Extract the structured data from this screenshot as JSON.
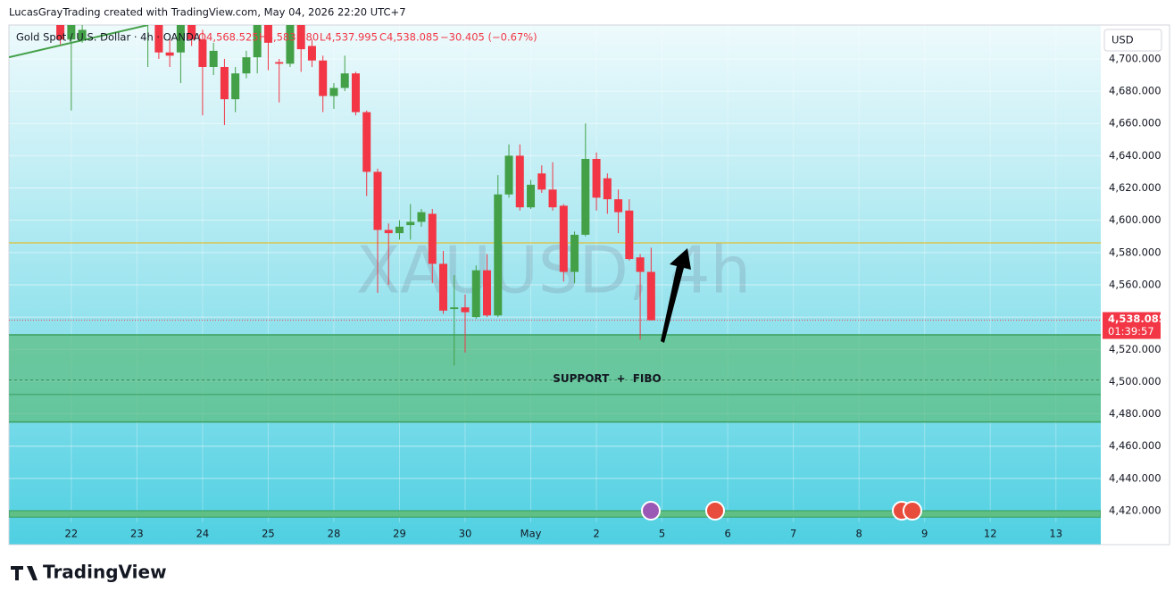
{
  "header": "LucasGrayTrading created with TradingView.com, May 04, 2026 22:20 UTC+7",
  "footer": "TradingView",
  "chart_data": {
    "type": "candlestick",
    "legend": "Gold Spot / U.S. Dollar · 4h · OANDA",
    "ohlc_text": [
      "O4,568.525",
      "H4,583.180",
      "L4,537.995",
      "C4,538.085",
      "−30.405 (−0.67%)"
    ],
    "watermark": "XAUUSD, 4h",
    "currency": "USD",
    "annotation": "SUPPORT + FIBO",
    "countdown": "01:39:57",
    "last_price": {
      "value": 4538.085,
      "label": "4,538.085"
    },
    "up_color": "#43a047",
    "down_color": "#f23645",
    "grid": true,
    "x": [
      0,
      1,
      2,
      8,
      9,
      10,
      11,
      12,
      13,
      14,
      15,
      16,
      17,
      18,
      19,
      20,
      21,
      22,
      23,
      24,
      25,
      26,
      27,
      28,
      29,
      30,
      31,
      32,
      33,
      34,
      35,
      36,
      37,
      38,
      39,
      40,
      41,
      42,
      43,
      44,
      45,
      46,
      47,
      48,
      49,
      50,
      51,
      52,
      53,
      54
    ],
    "open": [
      4725,
      4712,
      4712,
      4722,
      4730,
      4704,
      4704,
      4725,
      4712,
      4695,
      4695,
      4675,
      4691,
      4701,
      4722,
      4698,
      4697,
      4722,
      4708,
      4699,
      4677,
      4682,
      4691,
      4667,
      4630,
      4594,
      4592,
      4597,
      4599,
      4604,
      4573,
      4545,
      4546,
      4540,
      4569,
      4541,
      4616,
      4640,
      4608,
      4629,
      4619,
      4609,
      4568,
      4591,
      4638,
      4626,
      4613,
      4606,
      4577,
      4568
    ],
    "high": [
      4730,
      4730,
      4725,
      4735,
      4735,
      4713,
      4728,
      4730,
      4718,
      4710,
      4700,
      4695,
      4705,
      4730,
      4730,
      4700,
      4730,
      4730,
      4712,
      4702,
      4685,
      4702,
      4692,
      4668,
      4632,
      4598,
      4600,
      4610,
      4607,
      4607,
      4581,
      4566,
      4554,
      4572,
      4579,
      4628,
      4647,
      4647,
      4625,
      4634,
      4636,
      4610,
      4593,
      4660,
      4642,
      4629,
      4619,
      4613,
      4579,
      4583
    ],
    "low": [
      4709,
      4668,
      4710,
      4695,
      4700,
      4695,
      4685,
      4708,
      4665,
      4690,
      4659,
      4667,
      4688,
      4691,
      4693,
      4673,
      4695,
      4692,
      4695,
      4667,
      4669,
      4680,
      4665,
      4615,
      4555,
      4560,
      4588,
      4588,
      4596,
      4561,
      4542,
      4510,
      4518,
      4539,
      4540,
      4540,
      4614,
      4606,
      4607,
      4617,
      4606,
      4562,
      4561,
      4590,
      4606,
      4604,
      4592,
      4575,
      4526,
      4538
    ],
    "close": [
      4712,
      4722,
      4718,
      4730,
      4704,
      4702,
      4722,
      4712,
      4695,
      4705,
      4675,
      4691,
      4701,
      4722,
      4710,
      4697,
      4722,
      4706,
      4699,
      4677,
      4682,
      4691,
      4667,
      4630,
      4594,
      4592,
      4596,
      4599,
      4605,
      4573,
      4544,
      4546,
      4543,
      4569,
      4541,
      4616,
      4640,
      4608,
      4622,
      4619,
      4608,
      4568,
      4591,
      4638,
      4614,
      4613,
      4605,
      4576,
      4568,
      4538.085
    ],
    "xlim": [
      -4.7,
      95.1
    ],
    "xticks": [
      {
        "value": 1,
        "label": "22"
      },
      {
        "value": 7,
        "label": "23"
      },
      {
        "value": 13,
        "label": "24"
      },
      {
        "value": 19,
        "label": "25"
      },
      {
        "value": 25,
        "label": "28"
      },
      {
        "value": 31,
        "label": "29"
      },
      {
        "value": 37,
        "label": "30"
      },
      {
        "value": 43,
        "label": "May"
      },
      {
        "value": 49,
        "label": "2"
      },
      {
        "value": 55,
        "label": "5"
      },
      {
        "value": 61,
        "label": "6"
      },
      {
        "value": 67,
        "label": "7"
      },
      {
        "value": 73,
        "label": "8"
      },
      {
        "value": 79,
        "label": "9"
      },
      {
        "value": 85,
        "label": "12"
      },
      {
        "value": 91,
        "label": "13"
      }
    ],
    "ylim": [
      4412.8,
      4721
    ],
    "yticks": [
      {
        "value": 4420,
        "label": "4,420.000"
      },
      {
        "value": 4440,
        "label": "4,440.000"
      },
      {
        "value": 4460,
        "label": "4,460.000"
      },
      {
        "value": 4480,
        "label": "4,480.000"
      },
      {
        "value": 4500,
        "label": "4,500.000"
      },
      {
        "value": 4520,
        "label": "4,520.000"
      },
      {
        "value": 4540,
        "label": "4,540.000"
      },
      {
        "value": 4560,
        "label": "4,560.000"
      },
      {
        "value": 4580,
        "label": "4,580.000"
      },
      {
        "value": 4600,
        "label": "4,600.000"
      },
      {
        "value": 4620,
        "label": "4,620.000"
      },
      {
        "value": 4640,
        "label": "4,640.000"
      },
      {
        "value": 4660,
        "label": "4,660.000"
      },
      {
        "value": 4680,
        "label": "4,680.000"
      },
      {
        "value": 4700,
        "label": "4,700.000"
      }
    ],
    "resistance_line": {
      "value": 4586,
      "color": "#f0b400"
    },
    "support_zone": {
      "top": 4529,
      "bottom": 4475,
      "mid": 4501,
      "inner": 4492,
      "color": "#5fbf84"
    },
    "bottom_band": [
      4416,
      4420
    ],
    "trendline": {
      "x": [
        -4.7,
        8
      ],
      "y": [
        4701,
        4721
      ]
    }
  }
}
